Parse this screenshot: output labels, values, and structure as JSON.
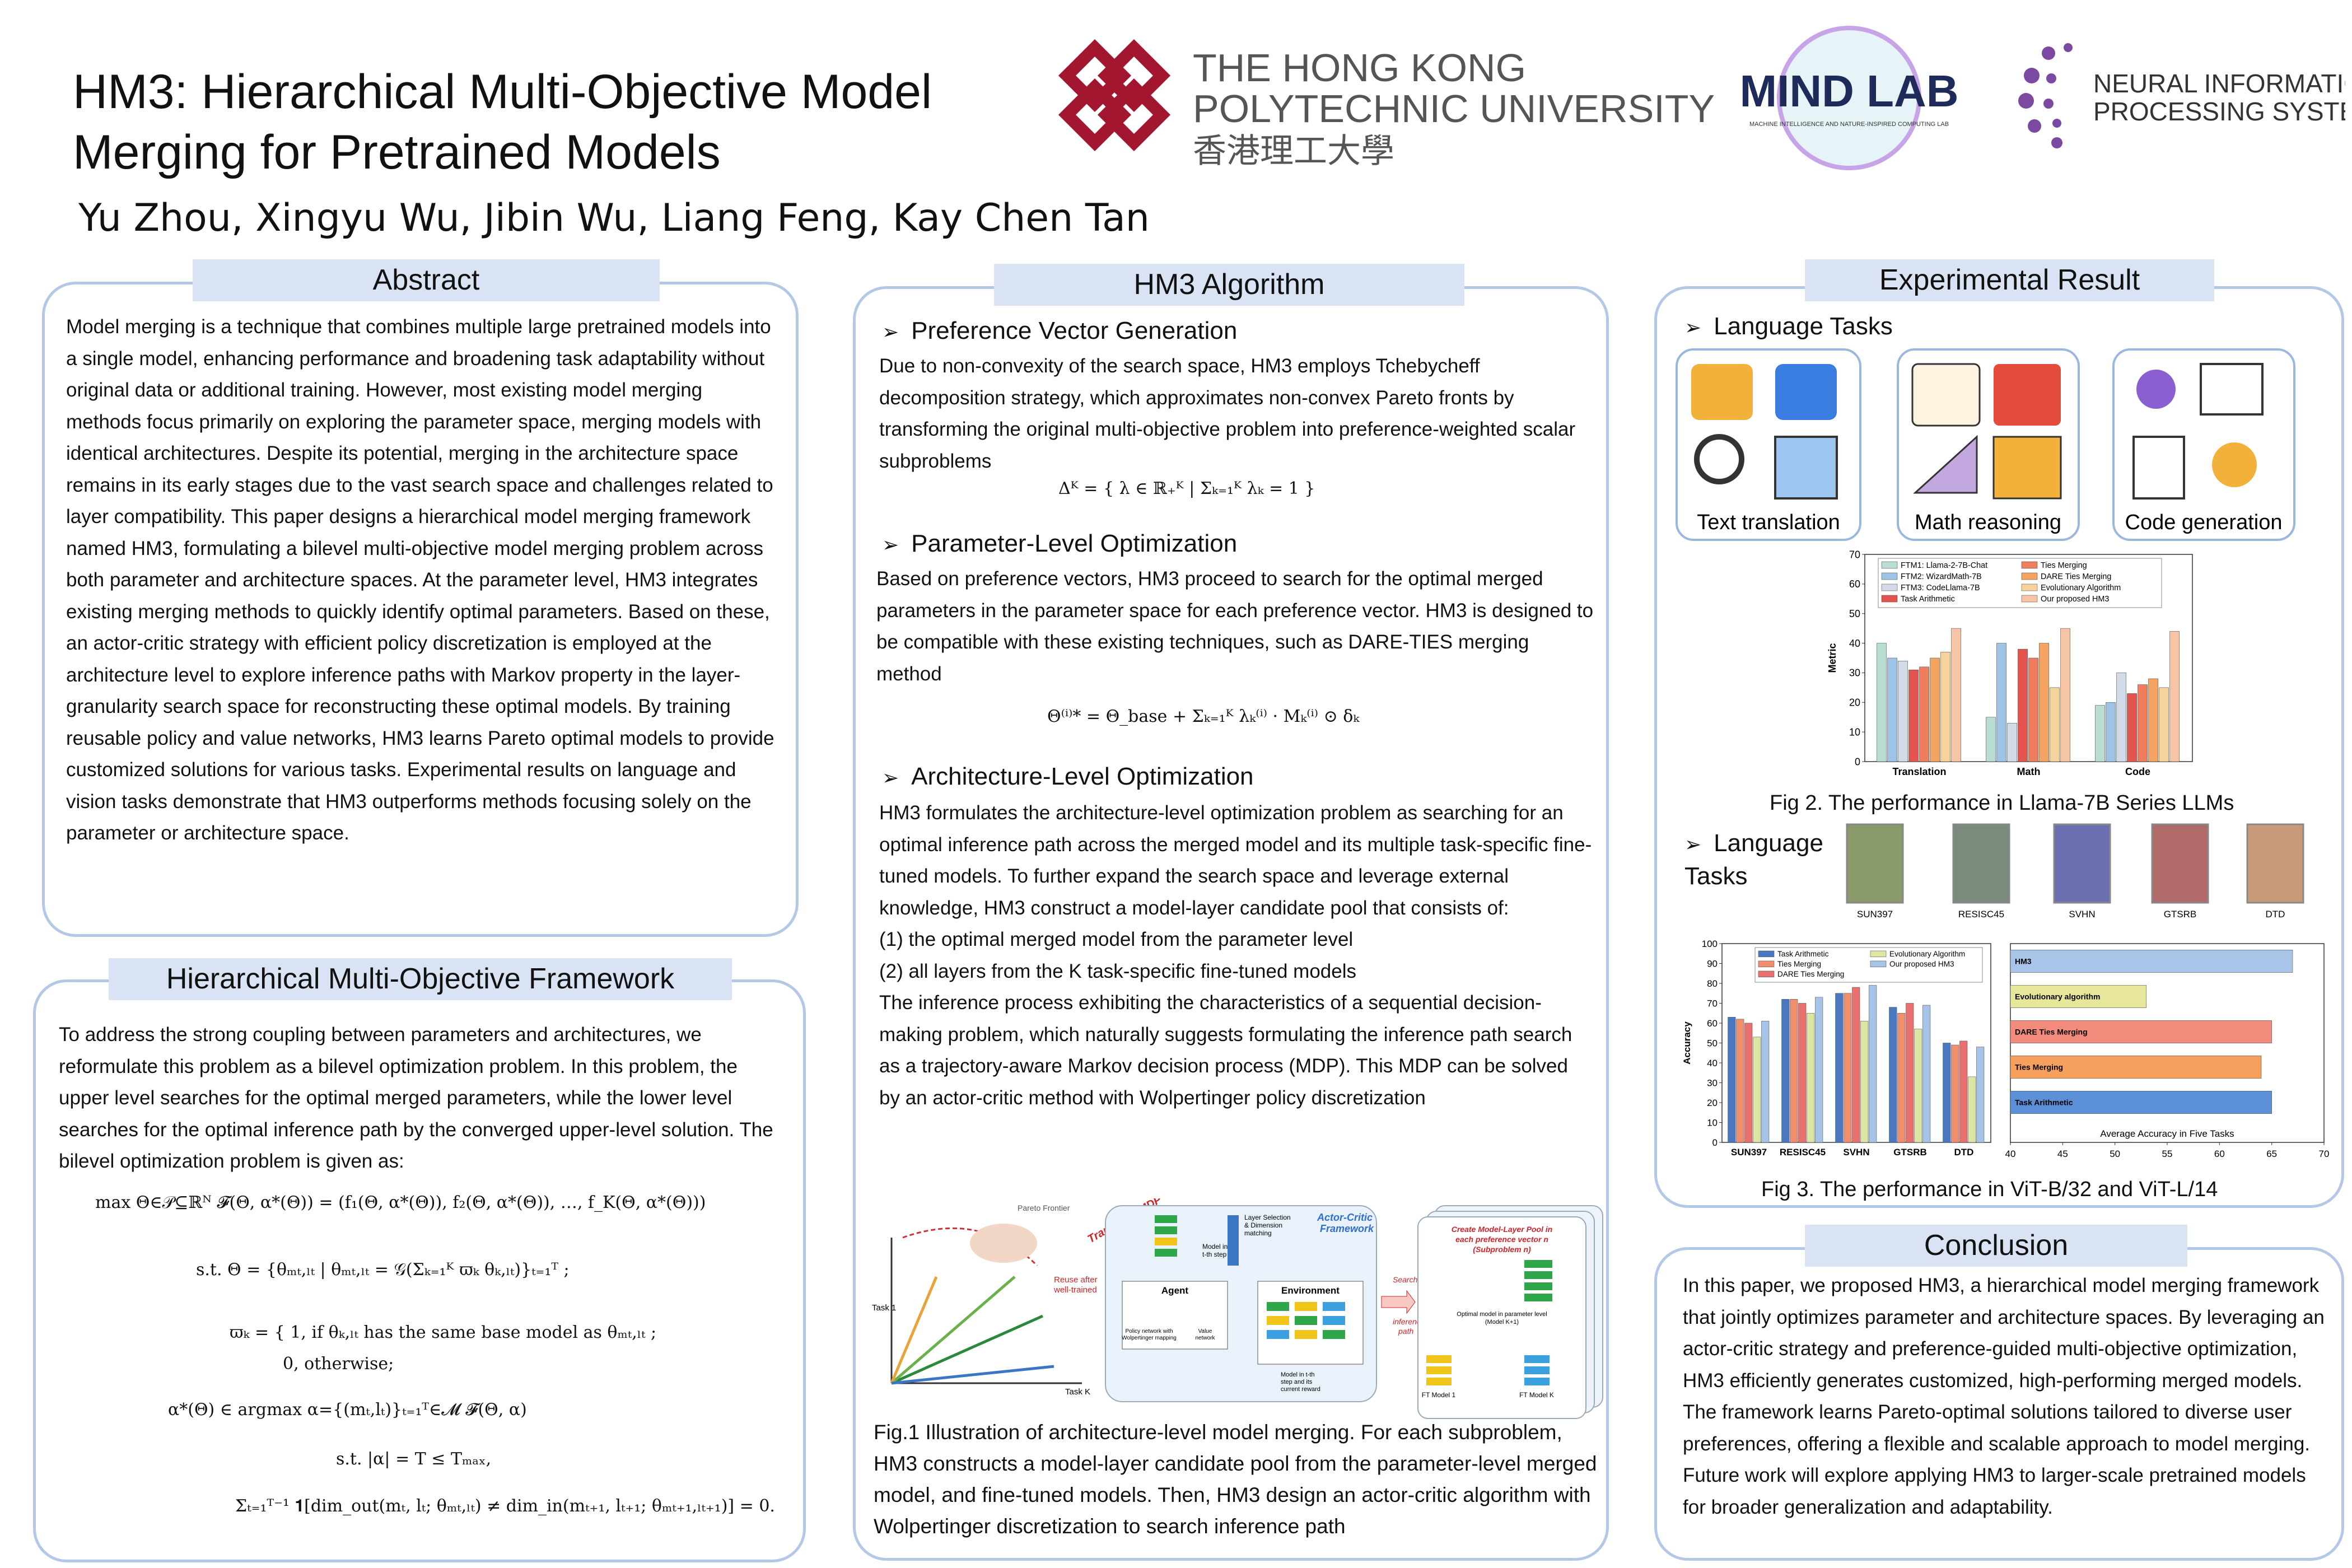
{
  "header": {
    "title_line1": "HM3: Hierarchical Multi-Objective Model",
    "title_line2": "Merging for Pretrained Models",
    "authors": "Yu Zhou, Xingyu Wu, Jibin Wu, Liang Feng, Kay Chen Tan"
  },
  "logos": {
    "polyu_en": [
      "THE HONG KONG",
      "POLYTECHNIC UNIVERSITY"
    ],
    "polyu_zh": "香港理工大學",
    "mindlab": "MIND LAB",
    "mindlab_sub": "MACHINE INTELLIGENCE AND NATURE-INSPIRED COMPUTING LAB",
    "neurips": [
      "NEURAL INFORMATION",
      "PROCESSING SYSTEMS"
    ]
  },
  "abstract": {
    "heading": "Abstract",
    "text": "Model merging is a technique that combines multiple large pretrained models into a single model, enhancing performance and broadening task adaptability without original data or additional training. However, most existing model merging methods focus primarily on exploring the parameter space, merging models with identical architectures. Despite its potential, merging in the architecture space remains in its early stages due to the vast search space and challenges related to layer compatibility. This paper designs a hierarchical model merging framework named HM3, formulating a bilevel multi-objective model merging problem across both parameter and architecture spaces. At the parameter level, HM3 integrates existing merging methods to quickly identify optimal parameters. Based on these, an actor-critic strategy with efficient policy discretization is employed at the architecture level to explore inference paths with Markov property in the layer-granularity search space for reconstructing these optimal models. By training reusable policy and value networks, HM3 learns Pareto optimal models to provide customized solutions for various tasks. Experimental results on language and vision tasks demonstrate that HM3 outperforms methods focusing solely on the parameter or architecture space."
  },
  "framework": {
    "heading": "Hierarchical Multi-Objective Framework",
    "text": "To address the strong coupling between parameters and architectures, we reformulate this problem as a bilevel optimization problem. In this problem, the upper level searches for the optimal merged parameters, while the lower level searches for the optimal inference path by the converged upper-level solution. The bilevel optimization problem is given as:",
    "equations": [
      "max Θ∈𝒫⊆ℝᴺ   𝓕(Θ, α*(Θ)) = (f₁(Θ, α*(Θ)), f₂(Θ, α*(Θ)), …, f_K(Θ, α*(Θ)))",
      "s.t.   Θ = {θₘₜ,ₗₜ | θₘₜ,ₗₜ = 𝒢(Σₖ₌₁ᴷ ϖₖ θₖ,ₗₜ)}ₜ₌₁ᵀ ;",
      "ϖₖ = { 1,  if θₖ,ₗₜ has the same base model as θₘₜ,ₗₜ ;",
      "0,  otherwise;",
      "α*(Θ) ∈ argmax α={(mₜ,lₜ)}ₜ₌₁ᵀ∈𝓜  𝓕(Θ, α)",
      "s.t.   |α| = T ≤ Tₘₐₓ,",
      "Σₜ₌₁ᵀ⁻¹ 𝟏[dim_out(mₜ, lₜ; θₘₜ,ₗₜ) ≠ dim_in(mₜ₊₁, lₜ₊₁; θₘₜ₊₁,ₗₜ₊₁)] = 0."
    ]
  },
  "algorithm": {
    "heading": "HM3 Algorithm",
    "preference": {
      "title": "Preference Vector Generation",
      "text": "Due to non-convexity of the search space, HM3 employs Tchebycheff decomposition strategy, which approximates non-convex Pareto fronts by transforming the original multi-objective problem into preference-weighted scalar subproblems",
      "equation": "Δᴷ = { λ ∈ ℝ₊ᴷ | Σₖ₌₁ᴷ λₖ = 1 }"
    },
    "parameter": {
      "title": "Parameter-Level Optimization",
      "text": "Based on preference vectors, HM3 proceed to search for the optimal merged parameters in the parameter space for each preference vector. HM3 is designed to be compatible with these existing techniques, such as DARE-TIES merging method",
      "equation": "Θ⁽ⁱ⁾* = Θ_base + Σₖ₌₁ᴷ λₖ⁽ⁱ⁾ · Mₖ⁽ⁱ⁾ ⊙ δₖ"
    },
    "architecture": {
      "title": "Architecture-Level Optimization",
      "paragraphs": [
        "HM3 formulates the architecture-level optimization problem as searching for an optimal inference path across the merged model and its multiple task-specific fine-tuned models. To further expand the search space and leverage external knowledge, HM3 construct a model-layer candidate pool that consists of:",
        "(1) the optimal merged model from the parameter level",
        "(2) all layers from the K task-specific fine-tuned models",
        "The inference process exhibiting the characteristics of a sequential decision-making problem, which naturally suggests formulating the inference path search as a trajectory-aware Markov decision process (MDP). This MDP can be solved by an actor-critic method with Wolpertinger policy discretization"
      ]
    },
    "figure": {
      "pareto": "Pareto Frontier",
      "transform": "Transform MDP",
      "reuse": [
        "Reuse after",
        "well-trained"
      ],
      "task1": "Task 1",
      "taskk": "Task K",
      "framework": [
        "Actor-Critic",
        "Framework"
      ],
      "layer_selection": [
        "Layer Selection",
        "& Dimension",
        "matching"
      ],
      "model_t": [
        "Model in",
        "t-th step"
      ],
      "agent": "Agent",
      "policy": [
        "Policy network with",
        "Wolpertinger mapping"
      ],
      "value": [
        "Value",
        "network"
      ],
      "environment": "Environment",
      "reward": [
        "Model in t-th",
        "step and its",
        "current reward"
      ],
      "search": [
        "Search",
        "inference",
        "path"
      ],
      "pool": [
        "Create Model-Layer Pool in",
        "each preference vector n",
        "(Subproblem n)"
      ],
      "optimal": [
        "Optimal model in parameter level",
        "(Model K+1)"
      ],
      "ft1": "FT Model 1",
      "ftk": "FT Model K",
      "caption": "Fig.1 Illustration of architecture-level model merging. For each subproblem, HM3 constructs a model-layer candidate pool from the parameter-level merged model, and fine-tuned models. Then, HM3 design an actor-critic algorithm with Wolpertinger discretization to search inference path"
    }
  },
  "results": {
    "heading": "Experimental Result",
    "language_heading": "Language Tasks",
    "tasks": [
      "Text translation",
      "Math reasoning",
      "Code generation"
    ],
    "fig2": {
      "type": "bar",
      "ylabel": "Metric",
      "categories": [
        "Translation",
        "Math",
        "Code"
      ],
      "ylim": [
        0,
        70
      ],
      "yticks": [
        0,
        10,
        20,
        30,
        40,
        50,
        60,
        70
      ],
      "series": [
        {
          "name": "FTM1: Llama-2-7B-Chat",
          "color": "#b9ddd3",
          "values": [
            40,
            15,
            19
          ]
        },
        {
          "name": "FTM2: WizardMath-7B",
          "color": "#9fc3e6",
          "values": [
            35,
            40,
            20
          ]
        },
        {
          "name": "FTM3: CodeLlama-7B",
          "color": "#d3dbe8",
          "values": [
            34,
            13,
            30
          ]
        },
        {
          "name": "Task Arithmetic",
          "color": "#e3544f",
          "values": [
            31,
            38,
            23
          ]
        },
        {
          "name": "Ties Merging",
          "color": "#ef7d5e",
          "values": [
            32,
            35,
            26
          ]
        },
        {
          "name": "DARE Ties Merging",
          "color": "#f4a460",
          "values": [
            35,
            40,
            28
          ]
        },
        {
          "name": "Evolutionary Algorithm",
          "color": "#f7d39b",
          "values": [
            37,
            25,
            25
          ]
        },
        {
          "name": "Our proposed HM3",
          "color": "#f7c4a6",
          "values": [
            45,
            45,
            44
          ]
        }
      ]
    },
    "fig2_caption": "Fig 2. The performance in Llama-7B Series LLMs",
    "vision_heading": "Language Tasks",
    "datasets": [
      "SUN397",
      "RESISC45",
      "SVHN",
      "GTSRB",
      "DTD"
    ],
    "fig3_left": {
      "type": "bar",
      "ylabel": "Accuracy",
      "categories": [
        "SUN397",
        "RESISC45",
        "SVHN",
        "GTSRB",
        "DTD"
      ],
      "ylim": [
        0,
        100
      ],
      "yticks": [
        0,
        10,
        20,
        30,
        40,
        50,
        60,
        70,
        80,
        90,
        100
      ],
      "series": [
        {
          "name": "Task Arithmetic",
          "color": "#4a78c0",
          "values": [
            63,
            72,
            75,
            68,
            50
          ]
        },
        {
          "name": "Ties Merging",
          "color": "#f28e6b",
          "values": [
            62,
            72,
            75,
            65,
            49
          ]
        },
        {
          "name": "DARE Ties Merging",
          "color": "#e8706f",
          "values": [
            60,
            70,
            78,
            70,
            51
          ]
        },
        {
          "name": "Evolutionary Algorithm",
          "color": "#dfe6a4",
          "values": [
            53,
            65,
            61,
            57,
            33
          ]
        },
        {
          "name": "Our proposed HM3",
          "color": "#a6c4e6",
          "values": [
            61,
            73,
            79,
            69,
            48
          ]
        }
      ]
    },
    "fig3_right": {
      "type": "hbar",
      "xlabel": "Average Accuracy in Five Tasks",
      "categories": [
        "HM3",
        "Evolutionary algorithm",
        "DARE Ties Merging",
        "Ties Merging",
        "Task Arithmetic"
      ],
      "values": [
        67,
        53,
        65,
        64,
        65
      ],
      "colors": [
        "#a9c4e8",
        "#e6e79a",
        "#f28b7b",
        "#f5a05c",
        "#5b8fd6"
      ],
      "xlim": [
        40,
        70
      ],
      "xticks": [
        40,
        45,
        50,
        55,
        60,
        65,
        70
      ]
    },
    "fig3_caption": "Fig 3. The performance in ViT-B/32 and ViT-L/14"
  },
  "conclusion": {
    "heading": "Conclusion",
    "text": "In this paper, we proposed HM3, a hierarchical model merging framework that jointly optimizes parameter and architecture spaces. By leveraging an actor-critic strategy and preference-guided multi-objective optimization, HM3 efficiently generates customized, high-performing merged models. The framework learns Pareto-optimal solutions tailored to diverse user preferences, offering a flexible and scalable approach to model merging. Future work will explore applying HM3 to larger-scale pretrained models for broader generalization and adaptability."
  }
}
